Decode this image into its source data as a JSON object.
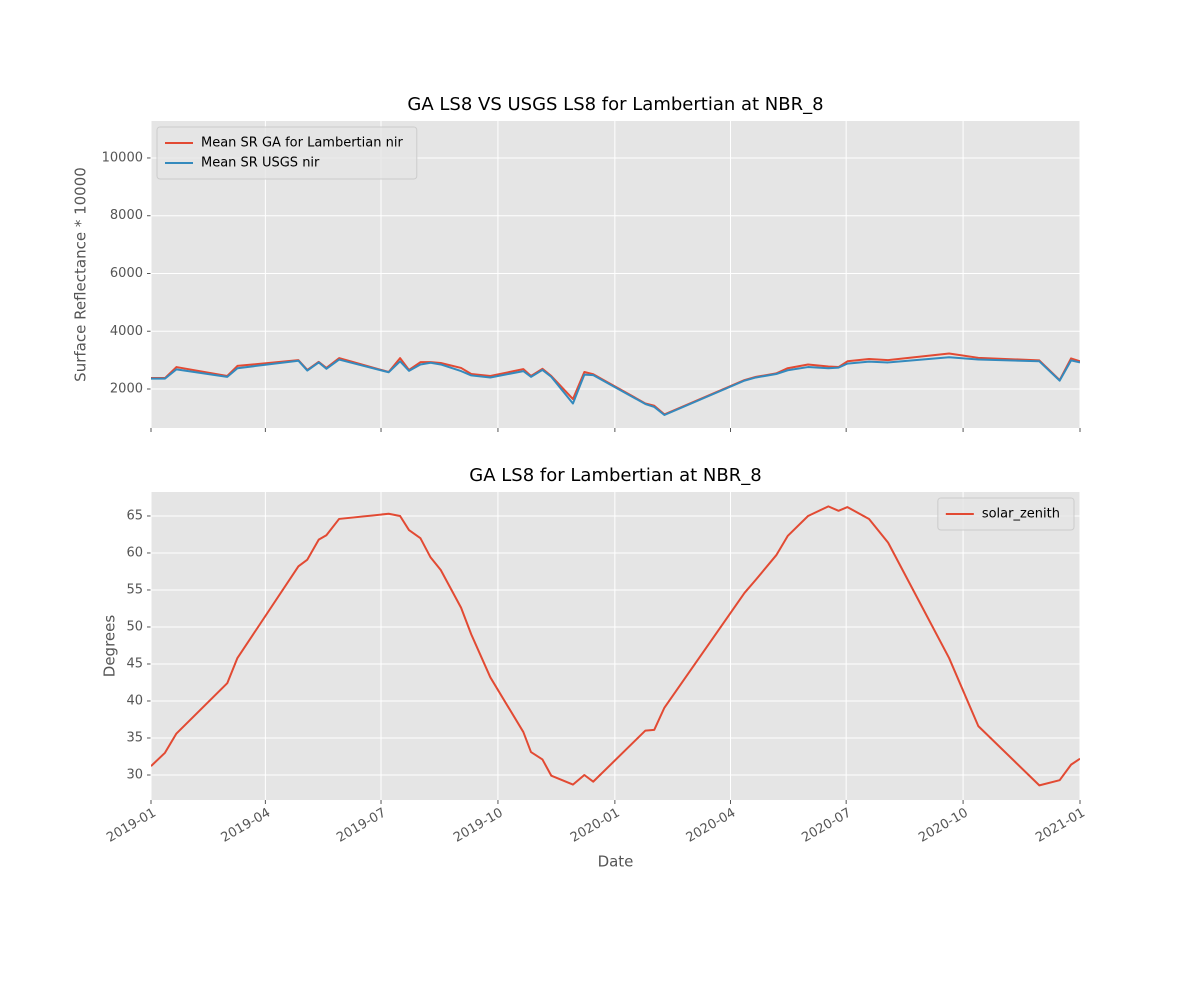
{
  "chart_data": [
    {
      "type": "line",
      "title": "GA LS8 VS USGS LS8 for Lambertian at NBR_8",
      "ylabel": "Surface Reflectance * 10000",
      "x": [
        "2019-01-01",
        "2019-01-12",
        "2019-01-21",
        "2019-03-02",
        "2019-03-10",
        "2019-04-27",
        "2019-05-04",
        "2019-05-13",
        "2019-05-19",
        "2019-05-29",
        "2019-07-07",
        "2019-07-16",
        "2019-07-23",
        "2019-08-01",
        "2019-08-09",
        "2019-08-17",
        "2019-09-02",
        "2019-09-10",
        "2019-09-25",
        "2019-10-21",
        "2019-10-27",
        "2019-11-05",
        "2019-11-12",
        "2019-11-29",
        "2019-12-08",
        "2019-12-15",
        "2020-01-25",
        "2020-02-01",
        "2020-02-09",
        "2020-04-12",
        "2020-04-21",
        "2020-05-07",
        "2020-05-16",
        "2020-06-01",
        "2020-06-17",
        "2020-06-25",
        "2020-07-02",
        "2020-07-19",
        "2020-08-03",
        "2020-09-20",
        "2020-10-13",
        "2020-11-30",
        "2020-12-16",
        "2020-12-25",
        "2021-01-01"
      ],
      "series": [
        {
          "name": "Mean SR GA for Lambertian nir",
          "color": "#e24a33",
          "values": [
            2380,
            2380,
            2760,
            2450,
            2800,
            3000,
            2660,
            2940,
            2730,
            3070,
            2590,
            3070,
            2660,
            2930,
            2930,
            2900,
            2730,
            2520,
            2450,
            2690,
            2450,
            2700,
            2450,
            1650,
            2590,
            2510,
            1500,
            1420,
            1120,
            2310,
            2420,
            2540,
            2720,
            2850,
            2780,
            2760,
            2960,
            3040,
            3000,
            3230,
            3080,
            2990,
            2310,
            3060,
            2960
          ]
        },
        {
          "name": "Mean SR USGS nir",
          "color": "#348abd",
          "values": [
            2360,
            2360,
            2680,
            2420,
            2720,
            2980,
            2640,
            2920,
            2700,
            3020,
            2580,
            2960,
            2630,
            2850,
            2910,
            2850,
            2620,
            2470,
            2400,
            2620,
            2420,
            2660,
            2420,
            1500,
            2500,
            2480,
            1480,
            1380,
            1100,
            2290,
            2400,
            2520,
            2650,
            2760,
            2720,
            2740,
            2880,
            2950,
            2920,
            3100,
            3020,
            2960,
            2290,
            2990,
            2920
          ]
        }
      ],
      "xlim": [
        "2019-01",
        "2021-01"
      ],
      "xticks": [
        "2019-01",
        "2019-04",
        "2019-07",
        "2019-10",
        "2020-01",
        "2020-04",
        "2020-07",
        "2020-10",
        "2021-01"
      ],
      "ylim": [
        650,
        11280
      ],
      "yticks": [
        2000,
        4000,
        6000,
        8000,
        10000
      ],
      "grid": true,
      "legend": "upper left"
    },
    {
      "type": "line",
      "title": "GA LS8 for Lambertian at NBR_8",
      "xlabel": "Date",
      "ylabel": "Degrees",
      "x": [
        "2019-01-01",
        "2019-01-12",
        "2019-01-21",
        "2019-03-02",
        "2019-03-10",
        "2019-04-27",
        "2019-05-04",
        "2019-05-13",
        "2019-05-19",
        "2019-05-29",
        "2019-07-07",
        "2019-07-16",
        "2019-07-23",
        "2019-08-01",
        "2019-08-09",
        "2019-08-17",
        "2019-09-02",
        "2019-09-10",
        "2019-09-25",
        "2019-10-21",
        "2019-10-27",
        "2019-11-05",
        "2019-11-12",
        "2019-11-29",
        "2019-12-08",
        "2019-12-15",
        "2020-01-25",
        "2020-02-01",
        "2020-02-09",
        "2020-04-12",
        "2020-04-21",
        "2020-05-07",
        "2020-05-16",
        "2020-06-01",
        "2020-06-17",
        "2020-06-25",
        "2020-07-02",
        "2020-07-19",
        "2020-08-03",
        "2020-09-20",
        "2020-10-13",
        "2020-11-30",
        "2020-12-16",
        "2020-12-25",
        "2021-01-01"
      ],
      "series": [
        {
          "name": "solar_zenith",
          "color": "#e24a33",
          "values": [
            31.2,
            33.0,
            35.6,
            42.4,
            45.8,
            58.2,
            59.1,
            61.8,
            62.4,
            64.6,
            65.3,
            65.0,
            63.1,
            62.0,
            59.4,
            57.7,
            52.6,
            49.0,
            43.2,
            35.8,
            33.1,
            32.1,
            29.9,
            28.7,
            30.0,
            29.1,
            36.0,
            36.1,
            39.1,
            54.6,
            56.4,
            59.7,
            62.3,
            65.0,
            66.3,
            65.7,
            66.2,
            64.6,
            61.4,
            45.8,
            36.6,
            28.6,
            29.3,
            31.4,
            32.2
          ]
        }
      ],
      "xlim": [
        "2019-01",
        "2021-01"
      ],
      "xticks": [
        "2019-01",
        "2019-04",
        "2019-07",
        "2019-10",
        "2020-01",
        "2020-04",
        "2020-07",
        "2020-10",
        "2021-01"
      ],
      "ylim": [
        26.62,
        68.24
      ],
      "yticks": [
        30,
        35,
        40,
        45,
        50,
        55,
        60,
        65
      ],
      "grid": true,
      "legend": "upper right"
    }
  ]
}
